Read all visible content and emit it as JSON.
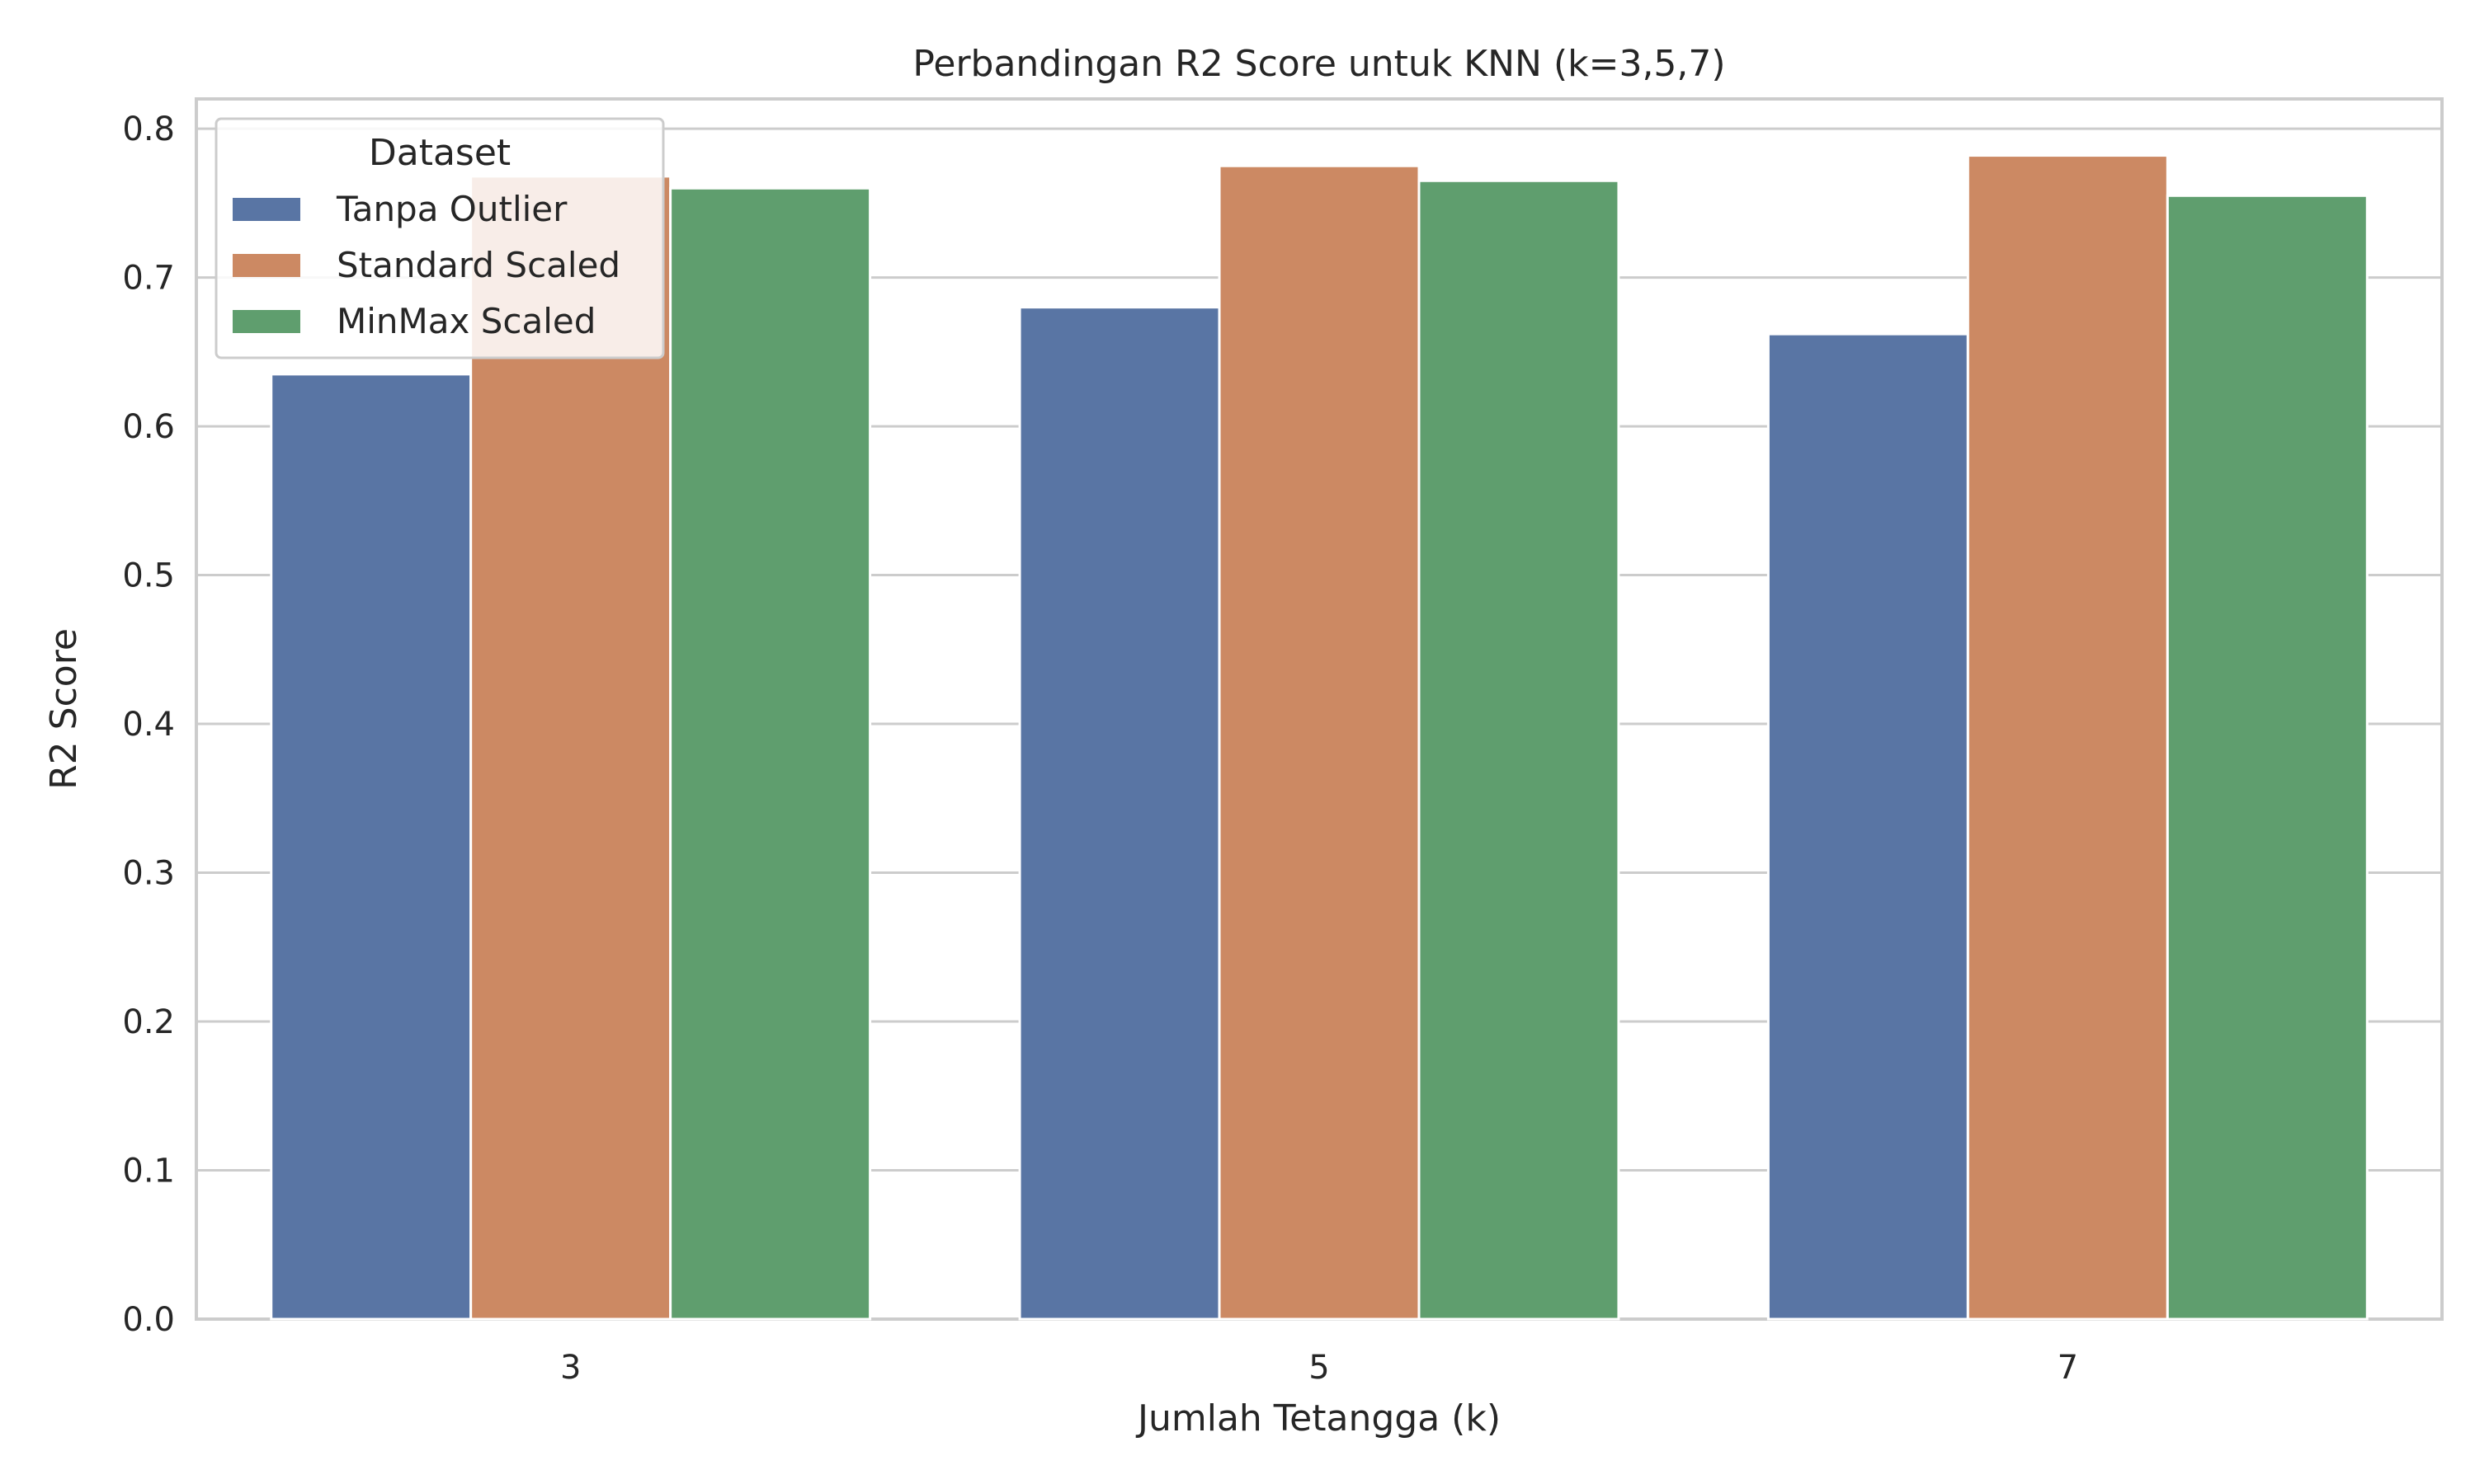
{
  "chart_data": {
    "type": "bar",
    "title": "Perbandingan R2 Score untuk KNN (k=3,5,7)",
    "xlabel": "Jumlah Tetangga (k)",
    "ylabel": "R2 Score",
    "categories": [
      "3",
      "5",
      "7"
    ],
    "ylim": [
      0,
      0.82
    ],
    "yticks": [
      "0.0",
      "0.1",
      "0.2",
      "0.3",
      "0.4",
      "0.5",
      "0.6",
      "0.7",
      "0.8"
    ],
    "grid": true,
    "legend": {
      "title": "Dataset",
      "placement": "top-left"
    },
    "series": [
      {
        "name": "Tanpa Outlier",
        "color": "#5975a4",
        "values": [
          0.635,
          0.68,
          0.662
        ]
      },
      {
        "name": "Standard Scaled",
        "color": "#cc8963",
        "values": [
          0.768,
          0.775,
          0.782
        ]
      },
      {
        "name": "MinMax Scaled",
        "color": "#5f9e6e",
        "values": [
          0.76,
          0.765,
          0.755
        ]
      }
    ]
  }
}
